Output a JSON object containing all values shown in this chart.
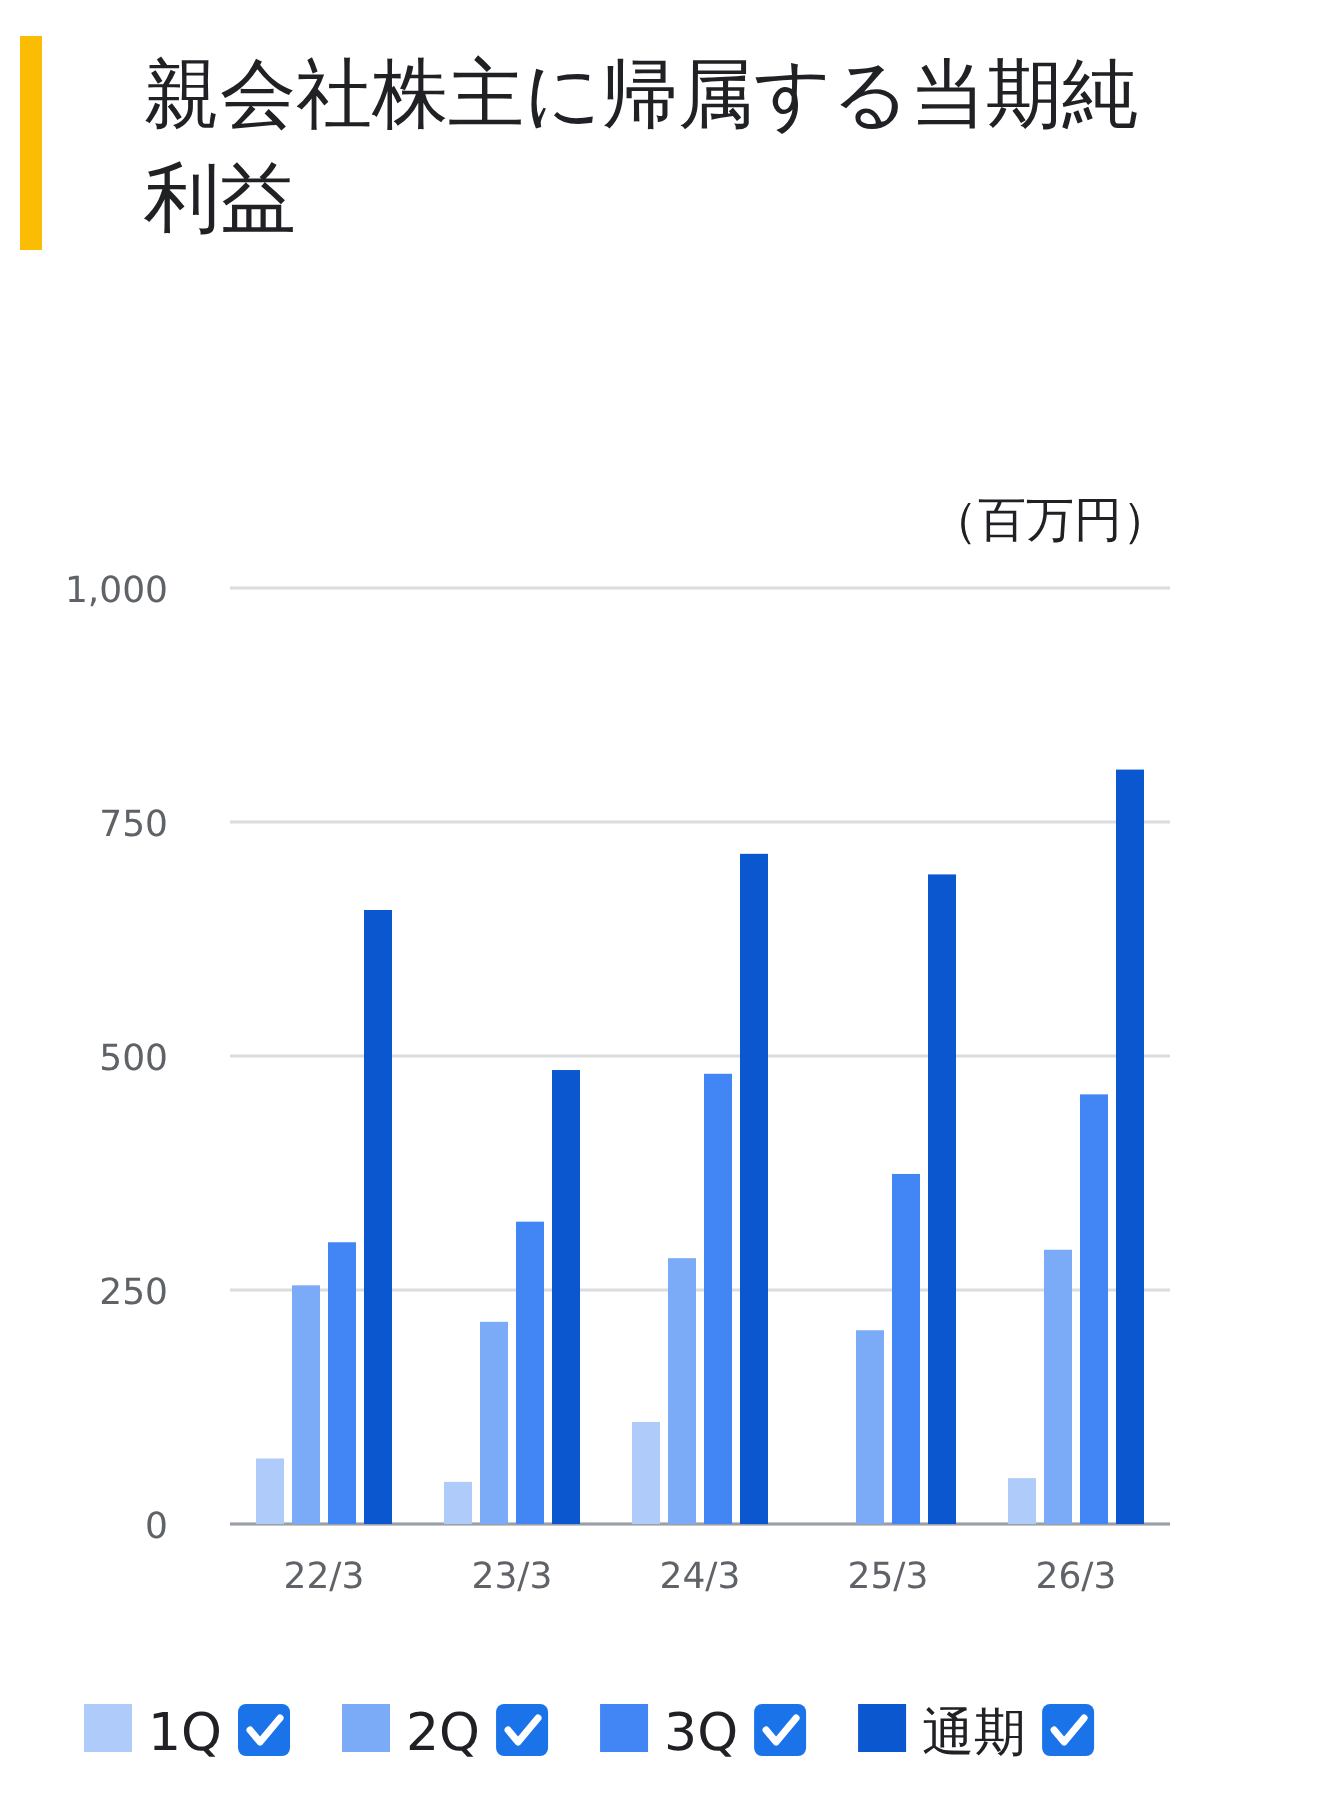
{
  "chart_data": {
    "type": "bar",
    "title": "親会社株主に帰属する当期純利益",
    "ylabel": "（百万円）",
    "categories": [
      "22/3",
      "23/3",
      "24/3",
      "25/3",
      "26/3"
    ],
    "series": [
      {
        "name": "1Q",
        "color": "#aecbfa",
        "values": [
          70,
          45,
          109,
          null,
          49
        ]
      },
      {
        "name": "2Q",
        "color": "#7baaf7",
        "values": [
          255,
          216,
          284,
          207,
          293
        ]
      },
      {
        "name": "3Q",
        "color": "#4285f4",
        "values": [
          301,
          323,
          481,
          374,
          459
        ]
      },
      {
        "name": "通期",
        "color": "#0b57d0",
        "values": [
          656,
          485,
          716,
          694,
          806
        ]
      }
    ],
    "ylim": [
      0,
      1000
    ],
    "yticks": [
      0,
      250,
      500,
      750,
      {
        "value": 1000,
        "label": "1,000"
      }
    ],
    "grid": "y",
    "legend": "bottom"
  }
}
